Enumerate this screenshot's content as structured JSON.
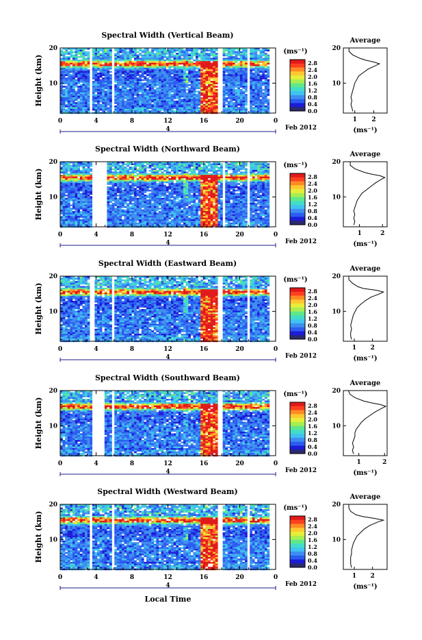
{
  "figure": {
    "date_label": "Feb 2012",
    "xlabel": "Local Time",
    "unit_label": "(ms⁻¹)",
    "average_title": "Average"
  },
  "colors": {
    "colormap": [
      "#2a2a6e",
      "#1c1cd8",
      "#2b5cf0",
      "#3d8ef0",
      "#3fc3f0",
      "#43dcc8",
      "#5fe88a",
      "#a8ee50",
      "#e6ee3a",
      "#ffc830",
      "#ff8a24",
      "#ff4020",
      "#e01a1a"
    ],
    "grid_gap": "#ffffff",
    "line": "#000000"
  },
  "chart_data": [
    {
      "type": "heatmap",
      "title": "Spectral Width (Vertical Beam)",
      "xlabel": "",
      "ylabel": "Height (km)",
      "x_ticks": [
        "0",
        "4",
        "8",
        "12",
        "16",
        "20",
        "0"
      ],
      "x_lim": [
        0,
        24
      ],
      "y_ticks": [
        "10",
        "20"
      ],
      "y_lim": [
        1.5,
        20
      ],
      "day_marker": "4",
      "colorbar": {
        "ticks": [
          "0.0",
          "0.4",
          "0.8",
          "1.2",
          "1.6",
          "2.0",
          "2.4",
          "2.8"
        ],
        "range": [
          0,
          3.0
        ]
      },
      "data_gaps_hours": [
        [
          3.1,
          3.5
        ],
        [
          5.6,
          5.9
        ],
        [
          17.4,
          18.0
        ],
        [
          20.8,
          21.0
        ]
      ],
      "average_profile": {
        "title": "Average",
        "x_ticks": [
          "1",
          "2"
        ],
        "x_lim": [
          0.4,
          2.7
        ],
        "y_ticks": [
          "10",
          "20"
        ],
        "y_lim": [
          1.5,
          20
        ],
        "xlabel": "(ms⁻¹)",
        "height_km": [
          2,
          3,
          4,
          5,
          6,
          7,
          8,
          9,
          10,
          11,
          12,
          13,
          14,
          15,
          15.5,
          16,
          16.5,
          17,
          18,
          19,
          20
        ],
        "width_ms": [
          0.9,
          0.85,
          0.8,
          0.85,
          0.8,
          0.85,
          0.9,
          0.95,
          1.0,
          1.1,
          1.2,
          1.45,
          1.7,
          2.1,
          2.3,
          2.0,
          1.6,
          1.3,
          0.9,
          0.7,
          0.7
        ]
      }
    },
    {
      "type": "heatmap",
      "title": "Spectral Width (Northward Beam)",
      "xlabel": "",
      "ylabel": "Height (km)",
      "x_ticks": [
        "0",
        "4",
        "8",
        "12",
        "16",
        "20",
        "0"
      ],
      "x_lim": [
        0,
        24
      ],
      "y_ticks": [
        "10",
        "20"
      ],
      "y_lim": [
        1.5,
        20
      ],
      "day_marker": "4",
      "colorbar": {
        "ticks": [
          "0.0",
          "0.4",
          "0.8",
          "1.2",
          "1.6",
          "2.0",
          "2.4",
          "2.8"
        ],
        "range": [
          0,
          3.0
        ]
      },
      "data_gaps_hours": [
        [
          3.5,
          5.0
        ],
        [
          5.8,
          6.0
        ],
        [
          17.9,
          18.2
        ],
        [
          20.8,
          21.0
        ]
      ],
      "average_profile": {
        "title": "Average",
        "x_ticks": [
          "1",
          "2"
        ],
        "x_lim": [
          0.3,
          2.2
        ],
        "y_ticks": [
          "10",
          "20"
        ],
        "y_lim": [
          1.5,
          20
        ],
        "xlabel": "(ms⁻¹)",
        "height_km": [
          2,
          3,
          4,
          5,
          6,
          7,
          8,
          9,
          10,
          11,
          12,
          13,
          14,
          15,
          15.5,
          16,
          16.5,
          17,
          18,
          19,
          20
        ],
        "width_ms": [
          0.75,
          0.8,
          0.75,
          0.8,
          0.75,
          0.8,
          0.85,
          0.9,
          1.0,
          1.1,
          1.3,
          1.5,
          1.7,
          1.95,
          2.1,
          1.9,
          1.5,
          1.2,
          0.8,
          0.6,
          0.6
        ]
      }
    },
    {
      "type": "heatmap",
      "title": "Spectral Width (Eastward Beam)",
      "xlabel": "",
      "ylabel": "Height (km)",
      "x_ticks": [
        "0",
        "4",
        "8",
        "12",
        "16",
        "20",
        "0"
      ],
      "x_lim": [
        0,
        24
      ],
      "y_ticks": [
        "10",
        "20"
      ],
      "y_lim": [
        1.5,
        20
      ],
      "day_marker": "4",
      "colorbar": {
        "ticks": [
          "0.0",
          "0.4",
          "0.8",
          "1.2",
          "1.6",
          "2.0",
          "2.4",
          "2.8"
        ],
        "range": [
          0,
          3.0
        ]
      },
      "data_gaps_hours": [
        [
          3.2,
          3.6
        ],
        [
          5.6,
          5.9
        ],
        [
          17.4,
          17.9
        ],
        [
          20.6,
          20.9
        ]
      ],
      "average_profile": {
        "title": "Average",
        "x_ticks": [
          "1",
          "2"
        ],
        "x_lim": [
          0.4,
          2.8
        ],
        "y_ticks": [
          "10",
          "20"
        ],
        "y_lim": [
          1.5,
          20
        ],
        "xlabel": "(ms⁻¹)",
        "height_km": [
          2,
          3,
          4,
          5,
          6,
          7,
          8,
          9,
          10,
          11,
          12,
          13,
          14,
          15,
          15.5,
          16,
          16.5,
          17,
          18,
          19,
          20
        ],
        "width_ms": [
          0.85,
          0.8,
          0.8,
          0.85,
          0.8,
          0.85,
          0.9,
          0.95,
          1.05,
          1.15,
          1.35,
          1.6,
          1.9,
          2.4,
          2.6,
          2.2,
          1.5,
          1.2,
          0.9,
          0.7,
          0.7
        ]
      }
    },
    {
      "type": "heatmap",
      "title": "Spectral Width (Southward Beam)",
      "xlabel": "",
      "ylabel": "Height (km)",
      "x_ticks": [
        "0",
        "4",
        "8",
        "12",
        "16",
        "20",
        "0"
      ],
      "x_lim": [
        0,
        24
      ],
      "y_ticks": [
        "10",
        "20"
      ],
      "y_lim": [
        1.5,
        20
      ],
      "day_marker": "4",
      "colorbar": {
        "ticks": [
          "0.0",
          "0.4",
          "0.8",
          "1.2",
          "1.6",
          "2.0",
          "2.4",
          "2.8"
        ],
        "range": [
          0,
          3.0
        ]
      },
      "data_gaps_hours": [
        [
          3.4,
          4.9
        ],
        [
          5.7,
          5.9
        ],
        [
          17.5,
          17.9
        ],
        [
          20.9,
          21.1
        ]
      ],
      "average_profile": {
        "title": "Average",
        "x_ticks": [
          "1",
          "2"
        ],
        "x_lim": [
          0.4,
          2.1
        ],
        "y_ticks": [
          "10",
          "20"
        ],
        "y_lim": [
          1.5,
          20
        ],
        "xlabel": "(ms⁻¹)",
        "height_km": [
          2,
          3,
          4,
          5,
          6,
          7,
          8,
          9,
          10,
          11,
          12,
          13,
          14,
          15,
          15.5,
          16,
          16.5,
          17,
          18,
          19,
          20
        ],
        "width_ms": [
          0.8,
          0.75,
          0.8,
          0.75,
          0.8,
          0.85,
          0.85,
          0.9,
          1.0,
          1.1,
          1.25,
          1.45,
          1.65,
          1.9,
          2.05,
          1.85,
          1.5,
          1.2,
          0.85,
          0.65,
          0.6
        ]
      }
    },
    {
      "type": "heatmap",
      "title": "Spectral Width (Westward Beam)",
      "xlabel": "Local Time",
      "ylabel": "Height (km)",
      "x_ticks": [
        "0",
        "4",
        "8",
        "12",
        "16",
        "20",
        "0"
      ],
      "x_lim": [
        0,
        24
      ],
      "y_ticks": [
        "10",
        "20"
      ],
      "y_lim": [
        1.5,
        20
      ],
      "day_marker": "4",
      "colorbar": {
        "ticks": [
          "0.0",
          "0.4",
          "0.8",
          "1.2",
          "1.6",
          "2.0",
          "2.4",
          "2.8"
        ],
        "range": [
          0,
          3.0
        ]
      },
      "data_gaps_hours": [
        [
          3.1,
          3.5
        ],
        [
          5.6,
          5.9
        ],
        [
          17.4,
          17.9
        ],
        [
          20.7,
          21.0
        ]
      ],
      "average_profile": {
        "title": "Average",
        "x_ticks": [
          "1",
          "2"
        ],
        "x_lim": [
          0.4,
          2.8
        ],
        "y_ticks": [
          "10",
          "20"
        ],
        "y_lim": [
          1.5,
          20
        ],
        "xlabel": "(ms⁻¹)",
        "height_km": [
          2,
          3,
          4,
          5,
          6,
          7,
          8,
          9,
          10,
          11,
          12,
          13,
          14,
          15,
          15.5,
          16,
          16.5,
          17,
          18,
          19,
          20
        ],
        "width_ms": [
          0.85,
          0.8,
          0.8,
          0.8,
          0.85,
          0.85,
          0.9,
          0.95,
          1.05,
          1.15,
          1.35,
          1.55,
          1.85,
          2.3,
          2.6,
          2.1,
          1.5,
          1.1,
          0.8,
          0.7,
          0.7
        ]
      }
    }
  ]
}
